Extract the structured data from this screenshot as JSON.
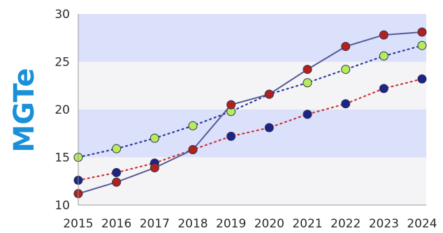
{
  "chart_data": {
    "type": "line",
    "ylabel": "MGTe",
    "xlabel": "",
    "title": "",
    "x": [
      "2015",
      "2016",
      "2017",
      "2018",
      "2019",
      "2020",
      "2021",
      "2022",
      "2023",
      "2024"
    ],
    "ylim": [
      10,
      30
    ],
    "yticks": [
      "10",
      "15",
      "20",
      "25",
      "30"
    ],
    "grid": "alternating horizontal bands",
    "legend": "none",
    "colors": {
      "band_shaded": "#dbe0fb",
      "band_plain": "#f4f4f6",
      "solid_line": "#555a96",
      "red_marker": "#b32020",
      "navy_marker": "#1c2389",
      "green_marker": "#b4ec5c",
      "green_dotted_line": "#2e3a9a",
      "red_dotted_line": "#cc3333",
      "axis_title": "#1a90d8"
    },
    "series": [
      {
        "style": "solid-line-red-markers",
        "values": [
          11.2,
          12.4,
          13.9,
          15.8,
          20.5,
          21.6,
          24.2,
          26.6,
          27.8,
          28.1
        ]
      },
      {
        "style": "dotted-line-green-markers",
        "values": [
          15.0,
          15.9,
          17.0,
          18.3,
          19.8,
          21.6,
          22.8,
          24.2,
          25.6,
          26.7
        ]
      },
      {
        "style": "dotted-line-navy-markers",
        "values": [
          12.6,
          13.4,
          14.4,
          15.8,
          17.2,
          18.1,
          19.5,
          20.6,
          22.2,
          23.2
        ]
      }
    ]
  }
}
